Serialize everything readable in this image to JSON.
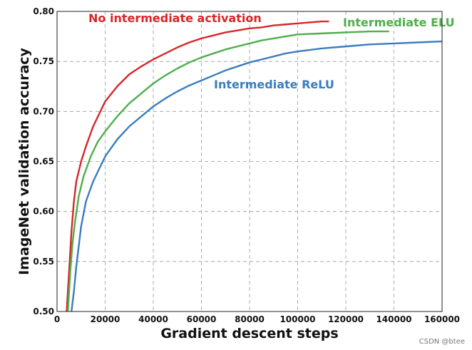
{
  "chart_data": {
    "type": "line",
    "xlabel": "Gradient descent steps",
    "ylabel": "ImageNet validation accuracy",
    "xlim": [
      0,
      160000
    ],
    "ylim": [
      0.5,
      0.8
    ],
    "xticks": [
      "0",
      "20000",
      "40000",
      "60000",
      "80000",
      "100000",
      "120000",
      "140000",
      "160000"
    ],
    "yticks": [
      "0.50",
      "0.55",
      "0.60",
      "0.65",
      "0.70",
      "0.75",
      "0.80"
    ],
    "grid": true,
    "legend": "inline labels",
    "series": [
      {
        "name": "No intermediate activation",
        "color": "#d62728",
        "x": [
          4000,
          5000,
          6000,
          7000,
          8000,
          10000,
          12000,
          15000,
          18000,
          20000,
          25000,
          30000,
          35000,
          40000,
          45000,
          50000,
          55000,
          60000,
          65000,
          70000,
          75000,
          80000,
          85000,
          90000,
          95000,
          100000,
          105000,
          110000,
          113000
        ],
        "y": [
          0.5,
          0.54,
          0.58,
          0.61,
          0.63,
          0.65,
          0.665,
          0.685,
          0.7,
          0.71,
          0.725,
          0.737,
          0.745,
          0.752,
          0.758,
          0.764,
          0.769,
          0.773,
          0.776,
          0.779,
          0.781,
          0.783,
          0.784,
          0.786,
          0.787,
          0.788,
          0.789,
          0.79,
          0.79
        ]
      },
      {
        "name": "Intermediate ELU",
        "color": "#4daf4a",
        "x": [
          4500,
          5500,
          6500,
          7500,
          9000,
          11000,
          14000,
          17000,
          20000,
          25000,
          30000,
          35000,
          40000,
          45000,
          50000,
          55000,
          60000,
          65000,
          70000,
          75000,
          80000,
          85000,
          90000,
          95000,
          100000,
          110000,
          120000,
          130000,
          138000
        ],
        "y": [
          0.5,
          0.54,
          0.57,
          0.59,
          0.615,
          0.635,
          0.655,
          0.67,
          0.68,
          0.695,
          0.708,
          0.718,
          0.728,
          0.736,
          0.743,
          0.749,
          0.754,
          0.758,
          0.762,
          0.765,
          0.768,
          0.771,
          0.773,
          0.775,
          0.777,
          0.778,
          0.779,
          0.78,
          0.78
        ]
      },
      {
        "name": "Intermediate ReLU",
        "color": "#3a7dbe",
        "x": [
          6000,
          7000,
          8000,
          10000,
          12000,
          15000,
          18000,
          20000,
          25000,
          30000,
          35000,
          40000,
          45000,
          50000,
          55000,
          60000,
          65000,
          70000,
          75000,
          80000,
          85000,
          90000,
          95000,
          100000,
          110000,
          120000,
          130000,
          140000,
          150000,
          160000
        ],
        "y": [
          0.5,
          0.52,
          0.545,
          0.585,
          0.61,
          0.63,
          0.645,
          0.655,
          0.672,
          0.685,
          0.695,
          0.705,
          0.713,
          0.72,
          0.726,
          0.731,
          0.736,
          0.741,
          0.745,
          0.749,
          0.752,
          0.755,
          0.758,
          0.76,
          0.763,
          0.765,
          0.767,
          0.768,
          0.769,
          0.77
        ]
      }
    ]
  },
  "watermark": "CSDN @btee"
}
